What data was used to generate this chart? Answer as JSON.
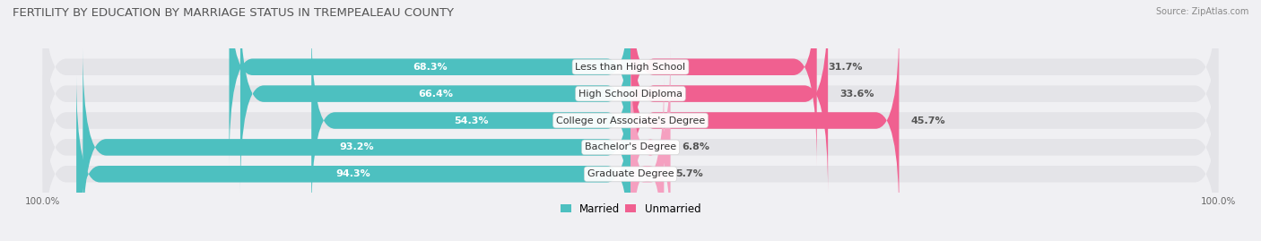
{
  "title": "FERTILITY BY EDUCATION BY MARRIAGE STATUS IN TREMPEALEAU COUNTY",
  "source": "Source: ZipAtlas.com",
  "categories": [
    "Less than High School",
    "High School Diploma",
    "College or Associate's Degree",
    "Bachelor's Degree",
    "Graduate Degree"
  ],
  "married": [
    68.3,
    66.4,
    54.3,
    93.2,
    94.3
  ],
  "unmarried": [
    31.7,
    33.6,
    45.7,
    6.8,
    5.7
  ],
  "married_color": "#4dc0c0",
  "unmarried_color_dark": "#f06090",
  "unmarried_color_light": "#f5a0c0",
  "bar_height": 0.62,
  "background_color": "#f0f0f3",
  "bar_bg_color": "#e4e4e8",
  "title_fontsize": 9.5,
  "label_fontsize": 8,
  "tick_fontsize": 7.5,
  "legend_fontsize": 8.5,
  "source_fontsize": 7
}
